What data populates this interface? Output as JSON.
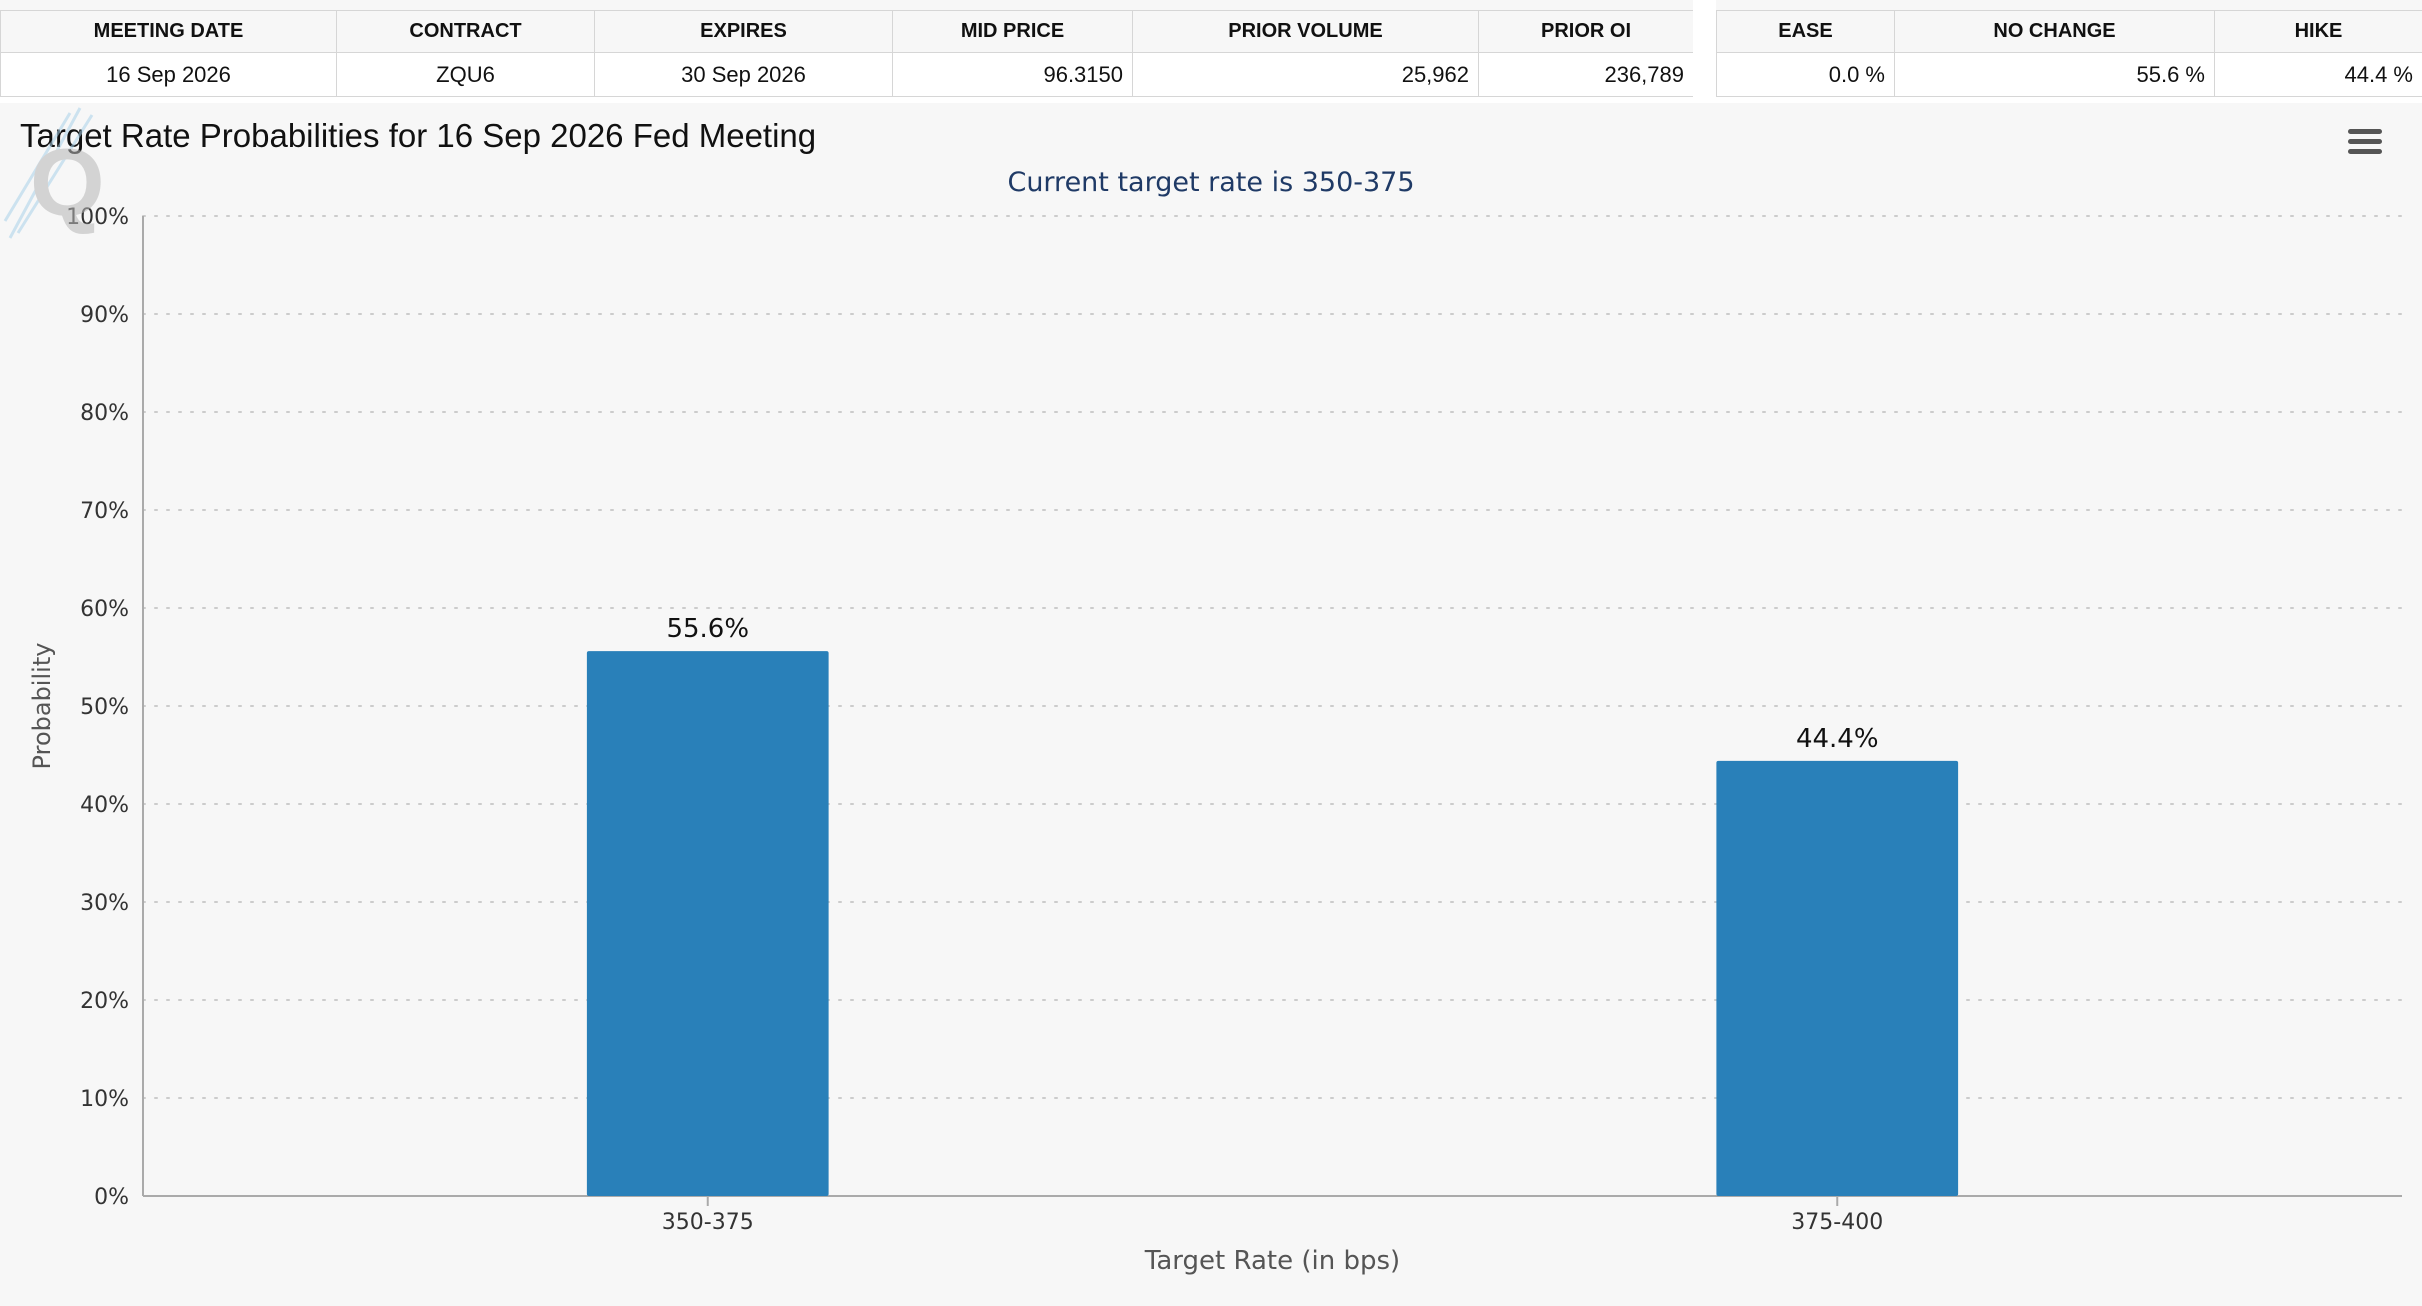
{
  "meeting_table": {
    "headers": [
      "MEETING DATE",
      "CONTRACT",
      "EXPIRES",
      "MID PRICE",
      "PRIOR VOLUME",
      "PRIOR OI"
    ],
    "row": [
      "16 Sep 2026",
      "ZQU6",
      "30 Sep 2026",
      "96.3150",
      "25,962",
      "236,789"
    ]
  },
  "probability_table": {
    "headers": [
      "EASE",
      "NO CHANGE",
      "HIKE"
    ],
    "row": [
      "0.0 %",
      "55.6 %",
      "44.4 %"
    ]
  },
  "chart": {
    "title": "Target Rate Probabilities for 16 Sep 2026 Fed Meeting",
    "subtitle": "Current target rate is 350-375",
    "menu_icon": "hamburger-menu-icon",
    "watermark_letter": "Q",
    "colors": {
      "bar": "#2980b9",
      "subtitle": "#1f3a66"
    }
  },
  "chart_data": {
    "type": "bar",
    "title": "Target Rate Probabilities for 16 Sep 2026 Fed Meeting",
    "subtitle": "Current target rate is 350-375",
    "categories": [
      "350-375",
      "375-400"
    ],
    "values": [
      55.6,
      44.4
    ],
    "data_labels": [
      "55.6%",
      "44.4%"
    ],
    "xlabel": "Target Rate (in bps)",
    "ylabel": "Probability",
    "ylim": [
      0,
      100
    ],
    "yticks": [
      "0%",
      "10%",
      "20%",
      "30%",
      "40%",
      "50%",
      "60%",
      "70%",
      "80%",
      "90%",
      "100%"
    ],
    "grid": true,
    "legend": "none"
  }
}
